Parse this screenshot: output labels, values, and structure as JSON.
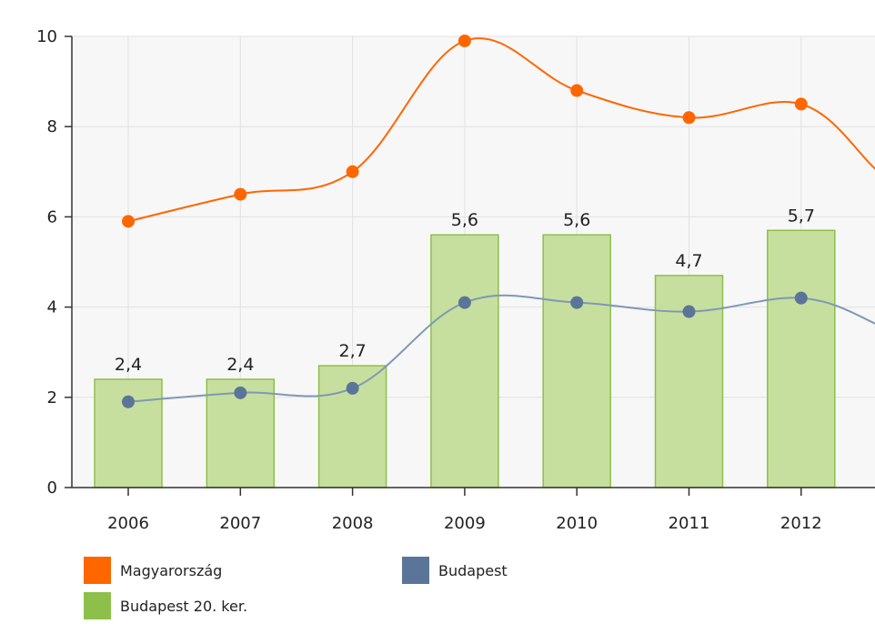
{
  "chart_data": {
    "type": "bar",
    "categories": [
      "2006",
      "2007",
      "2008",
      "2009",
      "2010",
      "2011",
      "2012"
    ],
    "ylim": [
      0,
      10
    ],
    "yticks": [
      0,
      2,
      4,
      6,
      8,
      10
    ],
    "grid": true,
    "legend_position": "bottom-left",
    "series": [
      {
        "name": "Magyarország",
        "type": "line",
        "color": "#ff6600",
        "values": [
          5.9,
          6.5,
          7.0,
          9.9,
          8.8,
          8.2,
          8.5
        ]
      },
      {
        "name": "Budapest",
        "type": "line",
        "color": "#5b7599",
        "values": [
          1.9,
          2.1,
          2.2,
          4.1,
          4.1,
          3.9,
          4.2
        ]
      },
      {
        "name": "Budapest 20. ker.",
        "type": "bar",
        "color": "#8dc04a",
        "values": [
          2.4,
          2.4,
          2.7,
          5.6,
          5.6,
          4.7,
          5.7
        ],
        "data_labels": [
          "2,4",
          "2,4",
          "2,7",
          "5,6",
          "5,6",
          "4,7",
          "5,7"
        ]
      }
    ],
    "legend": [
      {
        "label": "Magyarország",
        "color": "#ff6600"
      },
      {
        "label": "Budapest",
        "color": "#5b7599"
      },
      {
        "label": "Budapest 20. ker.",
        "color": "#8dc04a"
      }
    ]
  }
}
